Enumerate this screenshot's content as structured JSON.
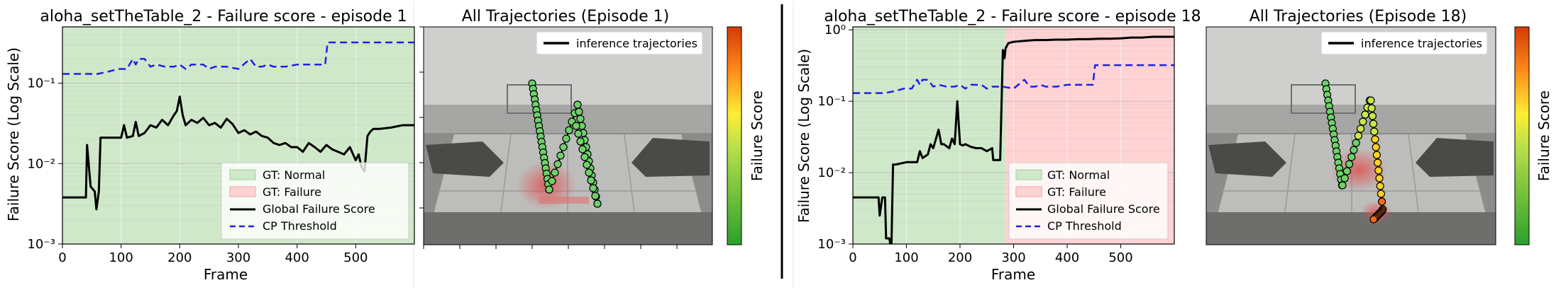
{
  "figure": {
    "left_panel_title": "aloha_setTheTable_2 - Failure score - episode 1",
    "right_panel_title": "aloha_setTheTable_2 - Failure score - episode 18",
    "traj_left_title": "All Trajectories (Episode 1)",
    "traj_right_title": "All Trajectories (Episode 18)",
    "traj_legend_label": "inference trajectories",
    "colorbar_label": "Failure Score",
    "colors": {
      "normal": "#cfe8c9",
      "failure": "#ffd3d3",
      "score": "#000000",
      "threshold": "#1f1fe6"
    }
  },
  "chart_data": [
    {
      "type": "line",
      "title": "aloha_setTheTable_2 - Failure score - episode 1",
      "xlabel": "Frame",
      "ylabel": "Failure Score (Log Scale)",
      "yscale": "log",
      "xlim": [
        0,
        600
      ],
      "ylim": [
        0.001,
        0.5
      ],
      "xticks": [
        0,
        100,
        200,
        300,
        400,
        500
      ],
      "xtick_labels": [
        "0",
        "100",
        "200",
        "300",
        "400",
        "500"
      ],
      "yticks": [
        0.001,
        0.01,
        0.1
      ],
      "ytick_labels": [
        "10⁻³",
        "10⁻²",
        "10⁻¹"
      ],
      "grid": true,
      "legend_position": "lower-right",
      "regions": [
        {
          "name": "GT: Normal",
          "from": 0,
          "to": 600,
          "color": "#cfe8c9"
        }
      ],
      "legend": [
        "GT: Normal",
        "GT: Failure",
        "Global Failure Score",
        "CP Threshold"
      ],
      "series": [
        {
          "name": "Global Failure Score",
          "style": "solid",
          "x": [
            0,
            40,
            42,
            48,
            55,
            58,
            62,
            65,
            75,
            90,
            100,
            105,
            110,
            120,
            125,
            130,
            140,
            150,
            160,
            170,
            180,
            190,
            195,
            200,
            205,
            210,
            220,
            230,
            240,
            250,
            260,
            270,
            280,
            290,
            300,
            310,
            320,
            330,
            340,
            350,
            360,
            370,
            380,
            390,
            400,
            410,
            420,
            430,
            440,
            450,
            460,
            470,
            480,
            490,
            500,
            505,
            510,
            515,
            520,
            525,
            530,
            540,
            560,
            580,
            600
          ],
          "y": [
            0.0038,
            0.0038,
            0.017,
            0.0052,
            0.0045,
            0.0027,
            0.0045,
            0.021,
            0.021,
            0.021,
            0.021,
            0.03,
            0.021,
            0.022,
            0.033,
            0.022,
            0.024,
            0.03,
            0.028,
            0.035,
            0.03,
            0.04,
            0.045,
            0.068,
            0.04,
            0.03,
            0.035,
            0.032,
            0.037,
            0.03,
            0.032,
            0.028,
            0.036,
            0.031,
            0.024,
            0.026,
            0.023,
            0.025,
            0.022,
            0.021,
            0.018,
            0.017,
            0.018,
            0.016,
            0.016,
            0.014,
            0.018,
            0.016,
            0.014,
            0.017,
            0.015,
            0.014,
            0.013,
            0.016,
            0.011,
            0.013,
            0.009,
            0.008,
            0.022,
            0.025,
            0.027,
            0.027,
            0.028,
            0.03,
            0.03
          ]
        },
        {
          "name": "CP Threshold",
          "style": "dashed",
          "x": [
            0,
            60,
            80,
            95,
            110,
            120,
            125,
            130,
            140,
            150,
            160,
            175,
            190,
            200,
            210,
            220,
            240,
            250,
            260,
            280,
            300,
            320,
            330,
            340,
            350,
            360,
            380,
            400,
            420,
            440,
            448,
            452,
            600
          ],
          "y": [
            0.13,
            0.13,
            0.14,
            0.15,
            0.15,
            0.2,
            0.17,
            0.2,
            0.2,
            0.16,
            0.17,
            0.16,
            0.16,
            0.17,
            0.15,
            0.17,
            0.17,
            0.15,
            0.16,
            0.16,
            0.15,
            0.2,
            0.16,
            0.16,
            0.17,
            0.16,
            0.16,
            0.17,
            0.17,
            0.17,
            0.17,
            0.32,
            0.32
          ]
        }
      ]
    },
    {
      "type": "line",
      "title": "aloha_setTheTable_2 - Failure score - episode 18",
      "xlabel": "Frame",
      "ylabel": "Failure Score (Log Scale)",
      "yscale": "log",
      "xlim": [
        0,
        600
      ],
      "ylim": [
        0.001,
        1.1
      ],
      "xticks": [
        0,
        100,
        200,
        300,
        400,
        500
      ],
      "xtick_labels": [
        "0",
        "100",
        "200",
        "300",
        "400",
        "500"
      ],
      "yticks": [
        0.001,
        0.01,
        0.1,
        1
      ],
      "ytick_labels": [
        "10⁻³",
        "10⁻²",
        "10⁻¹",
        "10⁰"
      ],
      "grid": true,
      "legend_position": "lower-right",
      "regions": [
        {
          "name": "GT: Normal",
          "from": 0,
          "to": 285,
          "color": "#cfe8c9"
        },
        {
          "name": "GT: Failure",
          "from": 285,
          "to": 600,
          "color": "#ffd3d3"
        }
      ],
      "legend": [
        "GT: Normal",
        "GT: Failure",
        "Global Failure Score",
        "CP Threshold"
      ],
      "series": [
        {
          "name": "Global Failure Score",
          "style": "solid",
          "x": [
            0,
            48,
            50,
            55,
            58,
            60,
            62,
            68,
            70,
            72,
            75,
            80,
            100,
            110,
            120,
            125,
            130,
            140,
            145,
            150,
            160,
            165,
            170,
            180,
            185,
            190,
            195,
            200,
            205,
            210,
            220,
            230,
            240,
            250,
            260,
            262,
            270,
            275,
            280,
            283,
            285,
            290,
            300,
            320,
            340,
            360,
            380,
            400,
            420,
            440,
            460,
            480,
            500,
            520,
            540,
            560,
            580,
            600
          ],
          "y": [
            0.0045,
            0.0045,
            0.0025,
            0.0045,
            0.0045,
            0.0045,
            0.0012,
            0.0012,
            0.001,
            0.001,
            0.013,
            0.013,
            0.014,
            0.014,
            0.014,
            0.02,
            0.016,
            0.018,
            0.025,
            0.022,
            0.04,
            0.025,
            0.025,
            0.022,
            0.03,
            0.025,
            0.1,
            0.025,
            0.024,
            0.025,
            0.023,
            0.022,
            0.022,
            0.02,
            0.022,
            0.015,
            0.015,
            0.015,
            0.52,
            0.4,
            0.55,
            0.65,
            0.68,
            0.7,
            0.72,
            0.72,
            0.73,
            0.73,
            0.74,
            0.74,
            0.75,
            0.75,
            0.76,
            0.78,
            0.78,
            0.8,
            0.8,
            0.8
          ]
        },
        {
          "name": "CP Threshold",
          "style": "dashed",
          "x": [
            0,
            60,
            80,
            95,
            110,
            120,
            125,
            130,
            140,
            150,
            160,
            175,
            190,
            200,
            210,
            220,
            240,
            250,
            260,
            280,
            300,
            320,
            330,
            340,
            350,
            360,
            380,
            400,
            420,
            440,
            448,
            452,
            600
          ],
          "y": [
            0.13,
            0.13,
            0.14,
            0.15,
            0.15,
            0.2,
            0.17,
            0.2,
            0.2,
            0.16,
            0.17,
            0.16,
            0.16,
            0.17,
            0.15,
            0.17,
            0.17,
            0.15,
            0.16,
            0.16,
            0.15,
            0.2,
            0.16,
            0.16,
            0.17,
            0.16,
            0.16,
            0.17,
            0.17,
            0.17,
            0.17,
            0.32,
            0.32
          ]
        }
      ]
    }
  ]
}
